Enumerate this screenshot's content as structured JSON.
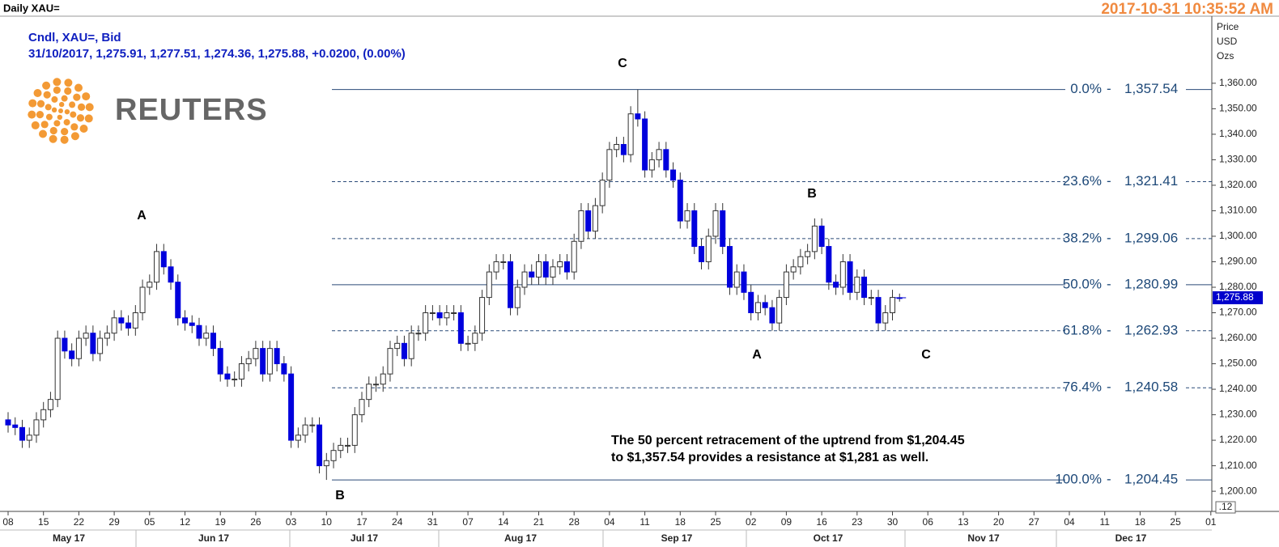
{
  "chart_data": {
    "type": "candlestick",
    "title": "Daily XAU=",
    "timestamp": "2017-10-31 10:35:52 AM",
    "subtitle": "Cndl, XAU=, Bid",
    "info": "31/10/2017, 1,275.91, 1,277.51, 1,274.36, 1,275.88, +0.0200, (0.00%)",
    "brand": "REUTERS",
    "y_axis_label": [
      "Price",
      "USD",
      "Ozs"
    ],
    "corner_label": ".12",
    "up_color": "#ffffff",
    "down_color": "#0000dd",
    "open": [
      1228,
      1226,
      1225,
      1220,
      1222,
      1228,
      1232,
      1236,
      1260,
      1255,
      1252,
      1260,
      1262,
      1254,
      1260,
      1262,
      1268,
      1266,
      1264,
      1270,
      1280,
      1282,
      1294,
      1288,
      1282,
      1268,
      1266,
      1265,
      1260,
      1262,
      1256,
      1246,
      1244,
      1244,
      1250,
      1252,
      1256,
      1246,
      1256,
      1250,
      1246,
      1220,
      1222,
      1226,
      1226,
      1210,
      1212,
      1216,
      1218,
      1218,
      1230,
      1236,
      1242,
      1242,
      1246,
      1256,
      1258,
      1252,
      1262,
      1262,
      1270,
      1270,
      1268,
      1270,
      1270,
      1258,
      1258,
      1262,
      1276,
      1286,
      1290,
      1290,
      1272,
      1280,
      1286,
      1284,
      1290,
      1284,
      1288,
      1290,
      1286,
      1298,
      1310,
      1302,
      1312,
      1322,
      1334,
      1336,
      1332,
      1348,
      1346,
      1326,
      1330,
      1334,
      1326,
      1322,
      1306,
      1310,
      1296,
      1290,
      1300,
      1310,
      1296,
      1280,
      1286,
      1278,
      1270,
      1274,
      1272,
      1266,
      1276,
      1286,
      1288,
      1292,
      1294,
      1304,
      1296,
      1282,
      1280,
      1290,
      1278,
      1284,
      1276,
      1276,
      1266,
      1270,
      1275.91
    ],
    "high": [
      1231,
      1229,
      1228,
      1225,
      1231,
      1235,
      1239,
      1263,
      1263,
      1258,
      1263,
      1265,
      1265,
      1263,
      1265,
      1271,
      1271,
      1269,
      1273,
      1283,
      1285,
      1297,
      1297,
      1291,
      1285,
      1271,
      1269,
      1268,
      1265,
      1265,
      1259,
      1249,
      1247,
      1253,
      1255,
      1259,
      1259,
      1259,
      1259,
      1253,
      1249,
      1225,
      1229,
      1229,
      1229,
      1215,
      1219,
      1221,
      1221,
      1233,
      1239,
      1245,
      1245,
      1249,
      1259,
      1261,
      1261,
      1265,
      1265,
      1273,
      1273,
      1273,
      1273,
      1273,
      1273,
      1261,
      1265,
      1279,
      1289,
      1293,
      1293,
      1293,
      1283,
      1289,
      1289,
      1293,
      1293,
      1291,
      1293,
      1293,
      1301,
      1313,
      1313,
      1315,
      1325,
      1337,
      1339,
      1339,
      1351,
      1357.54,
      1349,
      1333,
      1337,
      1337,
      1329,
      1325,
      1313,
      1313,
      1299,
      1303,
      1313,
      1313,
      1299,
      1289,
      1289,
      1281,
      1277,
      1277,
      1275,
      1279,
      1289,
      1291,
      1295,
      1297,
      1307,
      1307,
      1299,
      1285,
      1293,
      1293,
      1287,
      1287,
      1279,
      1279,
      1273,
      1279,
      1277.51
    ],
    "low": [
      1223,
      1222,
      1217,
      1217,
      1219,
      1225,
      1229,
      1233,
      1252,
      1249,
      1249,
      1257,
      1251,
      1251,
      1257,
      1259,
      1263,
      1261,
      1261,
      1267,
      1277,
      1279,
      1285,
      1279,
      1265,
      1263,
      1262,
      1257,
      1257,
      1253,
      1243,
      1241,
      1241,
      1241,
      1247,
      1249,
      1243,
      1243,
      1247,
      1243,
      1217,
      1217,
      1219,
      1223,
      1207,
      1204.45,
      1209,
      1213,
      1215,
      1215,
      1227,
      1233,
      1239,
      1239,
      1243,
      1253,
      1249,
      1249,
      1259,
      1259,
      1267,
      1265,
      1265,
      1267,
      1255,
      1255,
      1255,
      1259,
      1273,
      1283,
      1287,
      1269,
      1269,
      1277,
      1281,
      1281,
      1281,
      1281,
      1285,
      1283,
      1283,
      1295,
      1299,
      1299,
      1309,
      1319,
      1331,
      1329,
      1329,
      1343,
      1323,
      1323,
      1327,
      1323,
      1319,
      1303,
      1303,
      1293,
      1287,
      1287,
      1297,
      1293,
      1277,
      1277,
      1275,
      1267,
      1267,
      1269,
      1263,
      1263,
      1273,
      1283,
      1285,
      1289,
      1291,
      1293,
      1279,
      1277,
      1277,
      1275,
      1275,
      1273,
      1273,
      1263,
      1263,
      1267,
      1274.36
    ],
    "close": [
      1226,
      1225,
      1220,
      1222,
      1228,
      1232,
      1236,
      1260,
      1255,
      1252,
      1260,
      1262,
      1254,
      1260,
      1262,
      1268,
      1266,
      1264,
      1270,
      1280,
      1282,
      1294,
      1288,
      1282,
      1268,
      1266,
      1265,
      1260,
      1262,
      1256,
      1246,
      1244,
      1244,
      1250,
      1252,
      1256,
      1246,
      1256,
      1250,
      1246,
      1220,
      1222,
      1226,
      1226,
      1210,
      1212,
      1216,
      1218,
      1218,
      1230,
      1236,
      1242,
      1242,
      1246,
      1256,
      1258,
      1252,
      1262,
      1262,
      1270,
      1270,
      1268,
      1270,
      1270,
      1258,
      1258,
      1262,
      1276,
      1286,
      1290,
      1290,
      1272,
      1280,
      1286,
      1284,
      1290,
      1284,
      1288,
      1290,
      1286,
      1298,
      1310,
      1302,
      1312,
      1322,
      1334,
      1336,
      1332,
      1348,
      1346,
      1326,
      1330,
      1334,
      1326,
      1322,
      1306,
      1310,
      1296,
      1290,
      1300,
      1310,
      1296,
      1280,
      1286,
      1278,
      1270,
      1274,
      1272,
      1266,
      1276,
      1286,
      1288,
      1292,
      1294,
      1304,
      1296,
      1282,
      1280,
      1290,
      1278,
      1284,
      1276,
      1276,
      1266,
      1270,
      1276,
      1275.88
    ],
    "last_price_label": "1,275.88",
    "ylim": [
      1192.1,
      1386.3
    ],
    "yticks": [
      {
        "value": 1200,
        "label": "1,200.00"
      },
      {
        "value": 1210,
        "label": "1,210.00"
      },
      {
        "value": 1220,
        "label": "1,220.00"
      },
      {
        "value": 1230,
        "label": "1,230.00"
      },
      {
        "value": 1240,
        "label": "1,240.00"
      },
      {
        "value": 1250,
        "label": "1,250.00"
      },
      {
        "value": 1260,
        "label": "1,260.00"
      },
      {
        "value": 1270,
        "label": "1,270.00"
      },
      {
        "value": 1280,
        "label": "1,280.00"
      },
      {
        "value": 1290,
        "label": "1,290.00"
      },
      {
        "value": 1300,
        "label": "1,300.00"
      },
      {
        "value": 1310,
        "label": "1,310.00"
      },
      {
        "value": 1320,
        "label": "1,320.00"
      },
      {
        "value": 1330,
        "label": "1,330.00"
      },
      {
        "value": 1340,
        "label": "1,340.00"
      },
      {
        "value": 1350,
        "label": "1,350.00"
      },
      {
        "value": 1360,
        "label": "1,360.00"
      }
    ],
    "xticks": [
      {
        "value": 0,
        "label": "08"
      },
      {
        "value": 5,
        "label": "15"
      },
      {
        "value": 10,
        "label": "22"
      },
      {
        "value": 15,
        "label": "29"
      },
      {
        "value": 20,
        "label": "05"
      },
      {
        "value": 25,
        "label": "12"
      },
      {
        "value": 30,
        "label": "19"
      },
      {
        "value": 35,
        "label": "26"
      },
      {
        "value": 40,
        "label": "03"
      },
      {
        "value": 45,
        "label": "10"
      },
      {
        "value": 50,
        "label": "17"
      },
      {
        "value": 55,
        "label": "24"
      },
      {
        "value": 60,
        "label": "31"
      },
      {
        "value": 65,
        "label": "07"
      },
      {
        "value": 70,
        "label": "14"
      },
      {
        "value": 75,
        "label": "21"
      },
      {
        "value": 80,
        "label": "28"
      },
      {
        "value": 85,
        "label": "04"
      },
      {
        "value": 90,
        "label": "11"
      },
      {
        "value": 95,
        "label": "18"
      },
      {
        "value": 100,
        "label": "25"
      },
      {
        "value": 105,
        "label": "02"
      },
      {
        "value": 110,
        "label": "09"
      },
      {
        "value": 115,
        "label": "16"
      },
      {
        "value": 120,
        "label": "23"
      },
      {
        "value": 125,
        "label": "30"
      },
      {
        "value": 130,
        "label": "06"
      },
      {
        "value": 135,
        "label": "13"
      },
      {
        "value": 140,
        "label": "20"
      },
      {
        "value": 145,
        "label": "27"
      },
      {
        "value": 150,
        "label": "04"
      },
      {
        "value": 155,
        "label": "11"
      },
      {
        "value": 160,
        "label": "18"
      },
      {
        "value": 165,
        "label": "25"
      },
      {
        "value": 170,
        "label": "01"
      }
    ],
    "months": [
      "May 17",
      "Jun 17",
      "Jul 17",
      "Aug 17",
      "Sep 17",
      "Oct 17",
      "Nov 17",
      "Dec 17"
    ],
    "fib_levels": [
      {
        "label": "0.0%",
        "value": 1357.54,
        "value_label": "1,357.54",
        "style": "solid"
      },
      {
        "label": "23.6%",
        "value": 1321.41,
        "value_label": "1,321.41",
        "style": "dashed"
      },
      {
        "label": "38.2%",
        "value": 1299.06,
        "value_label": "1,299.06",
        "style": "dashed"
      },
      {
        "label": "50.0%",
        "value": 1280.99,
        "value_label": "1,280.99",
        "style": "solid"
      },
      {
        "label": "61.8%",
        "value": 1262.93,
        "value_label": "1,262.93",
        "style": "dashed"
      },
      {
        "label": "76.4%",
        "value": 1240.58,
        "value_label": "1,240.58",
        "style": "dashed"
      },
      {
        "label": "100.0%",
        "value": 1204.45,
        "value_label": "1,204.45",
        "style": "solid"
      }
    ],
    "fib_separator": "-",
    "wave_labels": [
      "A",
      "C",
      "B",
      "A",
      "C",
      "B"
    ],
    "annotation": [
      "The 50 percent retracement of the uptrend from $1,204.45",
      "to $1,357.54 provides a resistance at $1,281 as well."
    ]
  }
}
